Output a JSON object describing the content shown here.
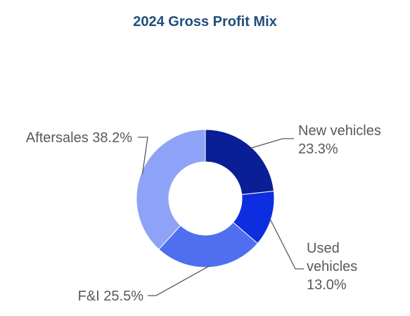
{
  "chart_data": {
    "type": "pie",
    "style": "donut",
    "title": "2024 Gross Profit Mix",
    "slices": [
      {
        "label": "New vehicles",
        "value": 23.3,
        "display": "23.3%",
        "color": "#0a1e96"
      },
      {
        "label": "Used vehicles",
        "value": 13.0,
        "display": "13.0%",
        "color": "#0c2ee0"
      },
      {
        "label": "F&I",
        "value": 25.5,
        "display": "25.5%",
        "color": "#4f6ff0"
      },
      {
        "label": "Aftersales",
        "value": 38.2,
        "display": "38.2%",
        "color": "#8ea3f7"
      }
    ],
    "legend": "none",
    "label_line_color": "#595959"
  }
}
